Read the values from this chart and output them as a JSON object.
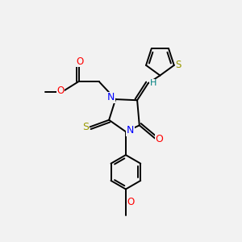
{
  "bg_color": "#f2f2f2",
  "atom_colors": {
    "N": "#0000ff",
    "O": "#ff0000",
    "S_thioxo": "#999900",
    "S_thiophene": "#999900",
    "C": "#000000",
    "H": "#008080"
  },
  "bond_color": "#000000",
  "figsize": [
    3.0,
    3.0
  ],
  "dpi": 100
}
